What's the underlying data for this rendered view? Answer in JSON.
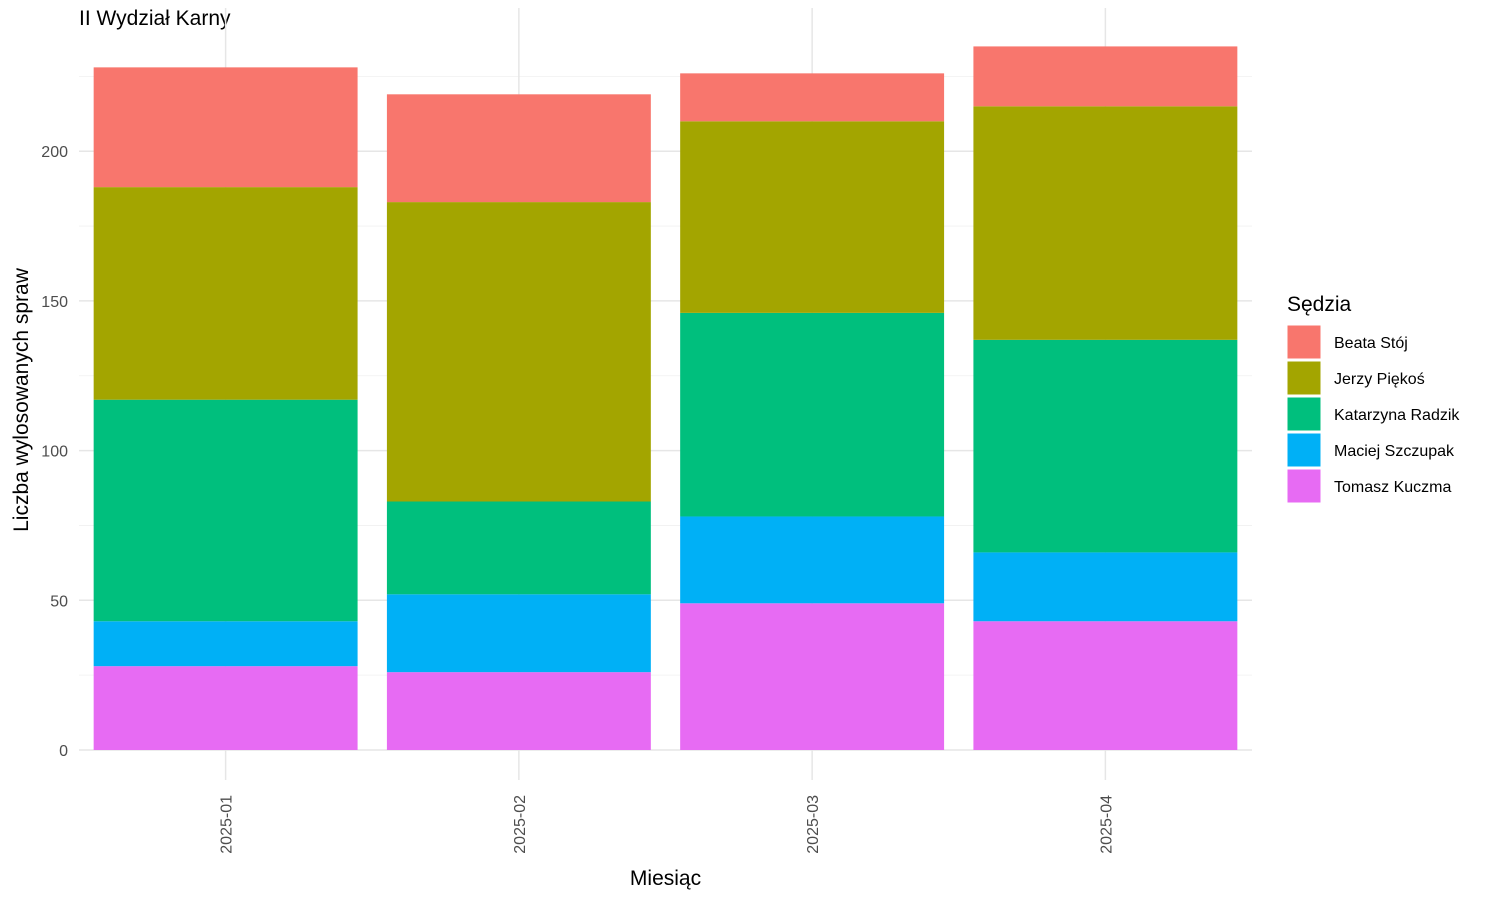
{
  "chart_data": {
    "type": "bar",
    "stacked": true,
    "title": "II Wydział Karny",
    "xlabel": "Miesiąc",
    "ylabel": "Liczba wylosowanych spraw",
    "categories": [
      "2025-01",
      "2025-02",
      "2025-03",
      "2025-04"
    ],
    "ylim": [
      0,
      245
    ],
    "yticks": [
      0,
      50,
      100,
      150,
      200
    ],
    "grid": true,
    "x_tick_rotation": "vertical",
    "legend": {
      "title": "Sędzia",
      "position": "right"
    },
    "series": [
      {
        "name": "Beata Stój",
        "color": "#F8766D",
        "values": [
          40,
          36,
          16,
          20
        ]
      },
      {
        "name": "Jerzy Piękoś",
        "color": "#A3A500",
        "values": [
          71,
          100,
          64,
          78
        ]
      },
      {
        "name": "Katarzyna Radzik",
        "color": "#00BF7D",
        "values": [
          74,
          31,
          68,
          71
        ]
      },
      {
        "name": "Maciej Szczupak",
        "color": "#00B0F6",
        "values": [
          15,
          26,
          29,
          23
        ]
      },
      {
        "name": "Tomasz Kuczma",
        "color": "#E76BF3",
        "values": [
          28,
          26,
          49,
          43
        ]
      }
    ]
  }
}
